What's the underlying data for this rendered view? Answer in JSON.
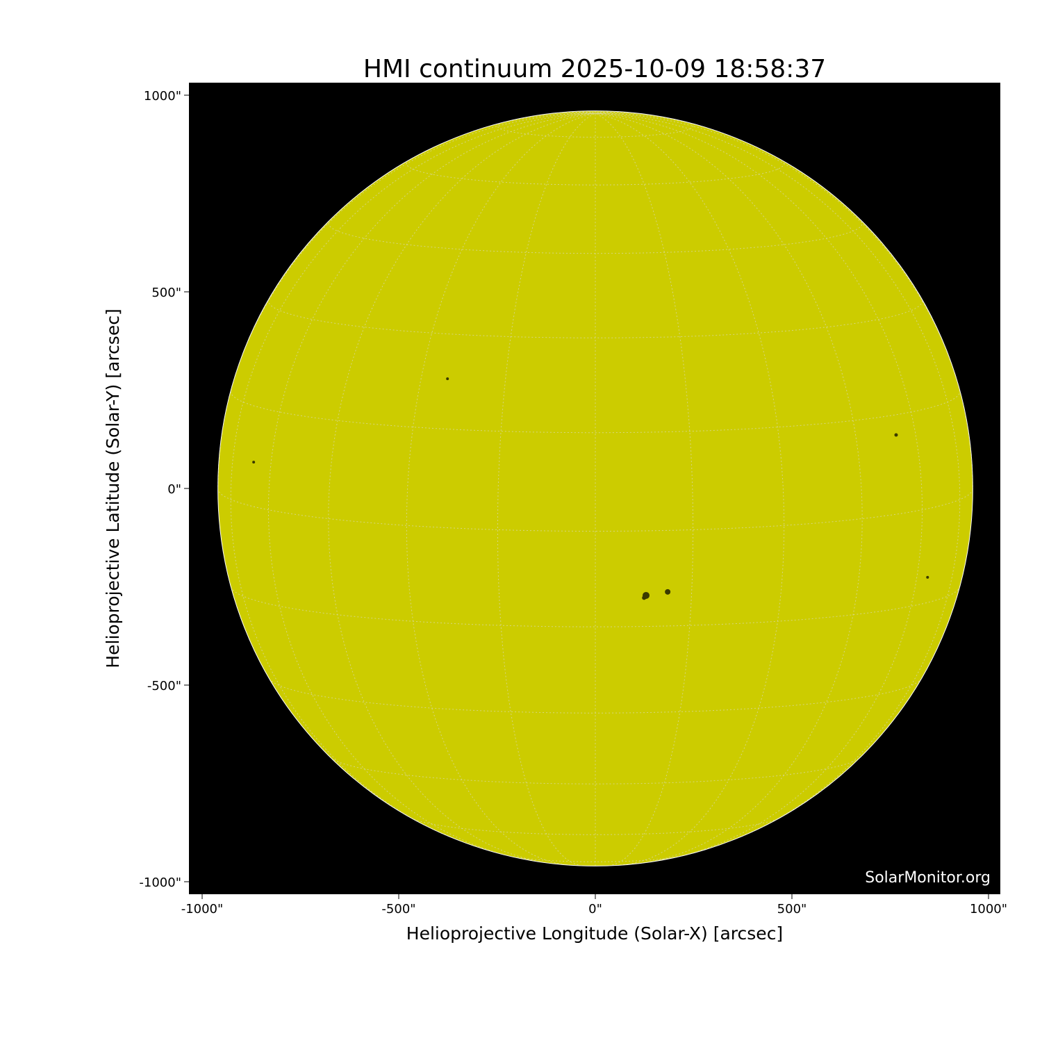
{
  "chart_data": {
    "type": "image",
    "title": "HMI continuum 2025-10-09 18:58:37",
    "xlabel": "Helioprojective Longitude (Solar-X) [arcsec]",
    "ylabel": "Helioprojective Latitude (Solar-Y) [arcsec]",
    "xlim": [
      -1034,
      1030
    ],
    "ylim": [
      -1034,
      1030
    ],
    "x_ticks": [
      -1000,
      -500,
      0,
      500,
      1000
    ],
    "x_tick_labels": [
      "-1000\"",
      "-500\"",
      "0\"",
      "500\"",
      "1000\""
    ],
    "y_ticks": [
      1000,
      500,
      0,
      -500,
      -1000
    ],
    "y_tick_labels": [
      "1000\"",
      "500\"",
      "0\"",
      "-500\"",
      "-1000\""
    ],
    "solar_radius_arcsec": 960,
    "grid": {
      "type": "heliographic",
      "spacing_deg": 15,
      "b0_deg": 6.5
    },
    "sunspots_arcsec": [
      {
        "x": 184,
        "y": -263,
        "size": 4
      },
      {
        "x": 129,
        "y": -272,
        "size": 5
      },
      {
        "x": 124,
        "y": -278,
        "size": 3
      },
      {
        "x": -376,
        "y": 279,
        "size": 2
      },
      {
        "x": 765,
        "y": 136,
        "size": 2.5
      },
      {
        "x": -869,
        "y": 67,
        "size": 2
      },
      {
        "x": 845,
        "y": -226,
        "size": 2
      }
    ],
    "colors": {
      "disk": "#cccc00",
      "background": "#000000",
      "grid": "#d8d8a0",
      "sunspot": "#3a3a00"
    }
  },
  "watermark": "SolarMonitor.org"
}
